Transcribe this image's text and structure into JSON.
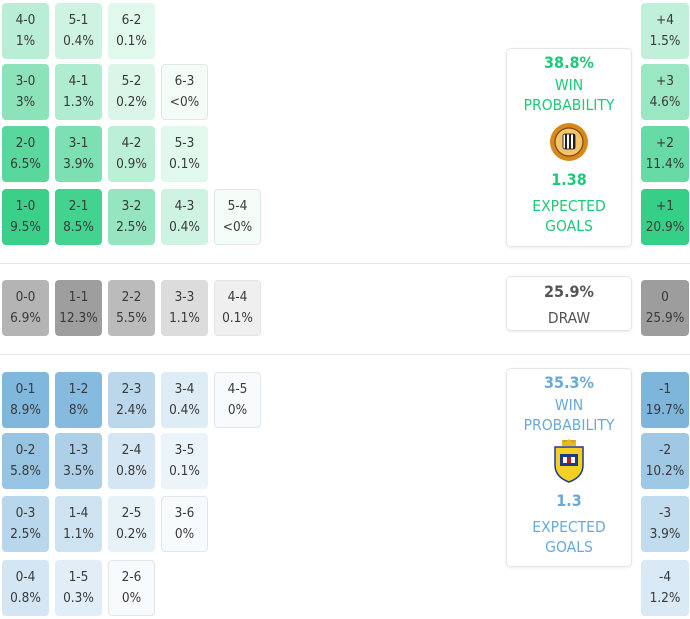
{
  "home_color": "#1fc97a",
  "away_color": "#6aaad6",
  "home_scores": [
    {
      "score": "4-0",
      "pct": "1%",
      "p": 1.0
    },
    {
      "score": "5-1",
      "pct": "0.4%",
      "p": 0.4
    },
    {
      "score": "6-2",
      "pct": "0.1%",
      "p": 0.1
    },
    {
      "score": "3-0",
      "pct": "3%",
      "p": 3.0
    },
    {
      "score": "4-1",
      "pct": "1.3%",
      "p": 1.3
    },
    {
      "score": "5-2",
      "pct": "0.2%",
      "p": 0.2
    },
    {
      "score": "6-3",
      "pct": "<0%",
      "p": 0.0
    },
    {
      "score": "2-0",
      "pct": "6.5%",
      "p": 6.5
    },
    {
      "score": "3-1",
      "pct": "3.9%",
      "p": 3.9
    },
    {
      "score": "4-2",
      "pct": "0.9%",
      "p": 0.9
    },
    {
      "score": "5-3",
      "pct": "0.1%",
      "p": 0.1
    },
    {
      "score": "1-0",
      "pct": "9.5%",
      "p": 9.5
    },
    {
      "score": "2-1",
      "pct": "8.5%",
      "p": 8.5
    },
    {
      "score": "3-2",
      "pct": "2.5%",
      "p": 2.5
    },
    {
      "score": "4-3",
      "pct": "0.4%",
      "p": 0.4
    },
    {
      "score": "5-4",
      "pct": "<0%",
      "p": 0.0
    }
  ],
  "draw_scores": [
    {
      "score": "0-0",
      "pct": "6.9%",
      "p": 6.9
    },
    {
      "score": "1-1",
      "pct": "12.3%",
      "p": 12.3
    },
    {
      "score": "2-2",
      "pct": "5.5%",
      "p": 5.5
    },
    {
      "score": "3-3",
      "pct": "1.1%",
      "p": 1.1
    },
    {
      "score": "4-4",
      "pct": "0.1%",
      "p": 0.1
    }
  ],
  "away_scores": [
    {
      "score": "0-1",
      "pct": "8.9%",
      "p": 8.9
    },
    {
      "score": "1-2",
      "pct": "8%",
      "p": 8.0
    },
    {
      "score": "2-3",
      "pct": "2.4%",
      "p": 2.4
    },
    {
      "score": "3-4",
      "pct": "0.4%",
      "p": 0.4
    },
    {
      "score": "4-5",
      "pct": "0%",
      "p": 0.0
    },
    {
      "score": "0-2",
      "pct": "5.8%",
      "p": 5.8
    },
    {
      "score": "1-3",
      "pct": "3.5%",
      "p": 3.5
    },
    {
      "score": "2-4",
      "pct": "0.8%",
      "p": 0.8
    },
    {
      "score": "3-5",
      "pct": "0.1%",
      "p": 0.1
    },
    {
      "score": "0-3",
      "pct": "2.5%",
      "p": 2.5
    },
    {
      "score": "1-4",
      "pct": "1.1%",
      "p": 1.1
    },
    {
      "score": "2-5",
      "pct": "0.2%",
      "p": 0.2
    },
    {
      "score": "3-6",
      "pct": "0%",
      "p": 0.0
    },
    {
      "score": "0-4",
      "pct": "0.8%",
      "p": 0.8
    },
    {
      "score": "1-5",
      "pct": "0.3%",
      "p": 0.3
    },
    {
      "score": "2-6",
      "pct": "0%",
      "p": 0.0
    }
  ],
  "home_margins": [
    {
      "margin": "+4",
      "pct": "1.5%",
      "p": 1.5
    },
    {
      "margin": "+3",
      "pct": "4.6%",
      "p": 4.6
    },
    {
      "margin": "+2",
      "pct": "11.4%",
      "p": 11.4
    },
    {
      "margin": "+1",
      "pct": "20.9%",
      "p": 20.9
    }
  ],
  "draw_margin": {
    "margin": "0",
    "pct": "25.9%",
    "p": 25.9
  },
  "away_margins": [
    {
      "margin": "-1",
      "pct": "19.7%",
      "p": 19.7
    },
    {
      "margin": "-2",
      "pct": "10.2%",
      "p": 10.2
    },
    {
      "margin": "-3",
      "pct": "3.9%",
      "p": 3.9
    },
    {
      "margin": "-4",
      "pct": "1.2%",
      "p": 1.2
    }
  ],
  "home_card": {
    "win_pct": "38.8%",
    "win_label_1": "WIN",
    "win_label_2": "PROBABILITY",
    "xg": "1.38",
    "xg_label_1": "EXPECTED",
    "xg_label_2": "GOALS",
    "crest_icon": "home-team-crest-icon"
  },
  "draw_card": {
    "pct": "25.9%",
    "label": "DRAW"
  },
  "away_card": {
    "win_pct": "35.3%",
    "win_label_1": "WIN",
    "win_label_2": "PROBABILITY",
    "xg": "1.3",
    "xg_label_1": "EXPECTED",
    "xg_label_2": "GOALS",
    "crest_icon": "away-team-crest-icon"
  }
}
